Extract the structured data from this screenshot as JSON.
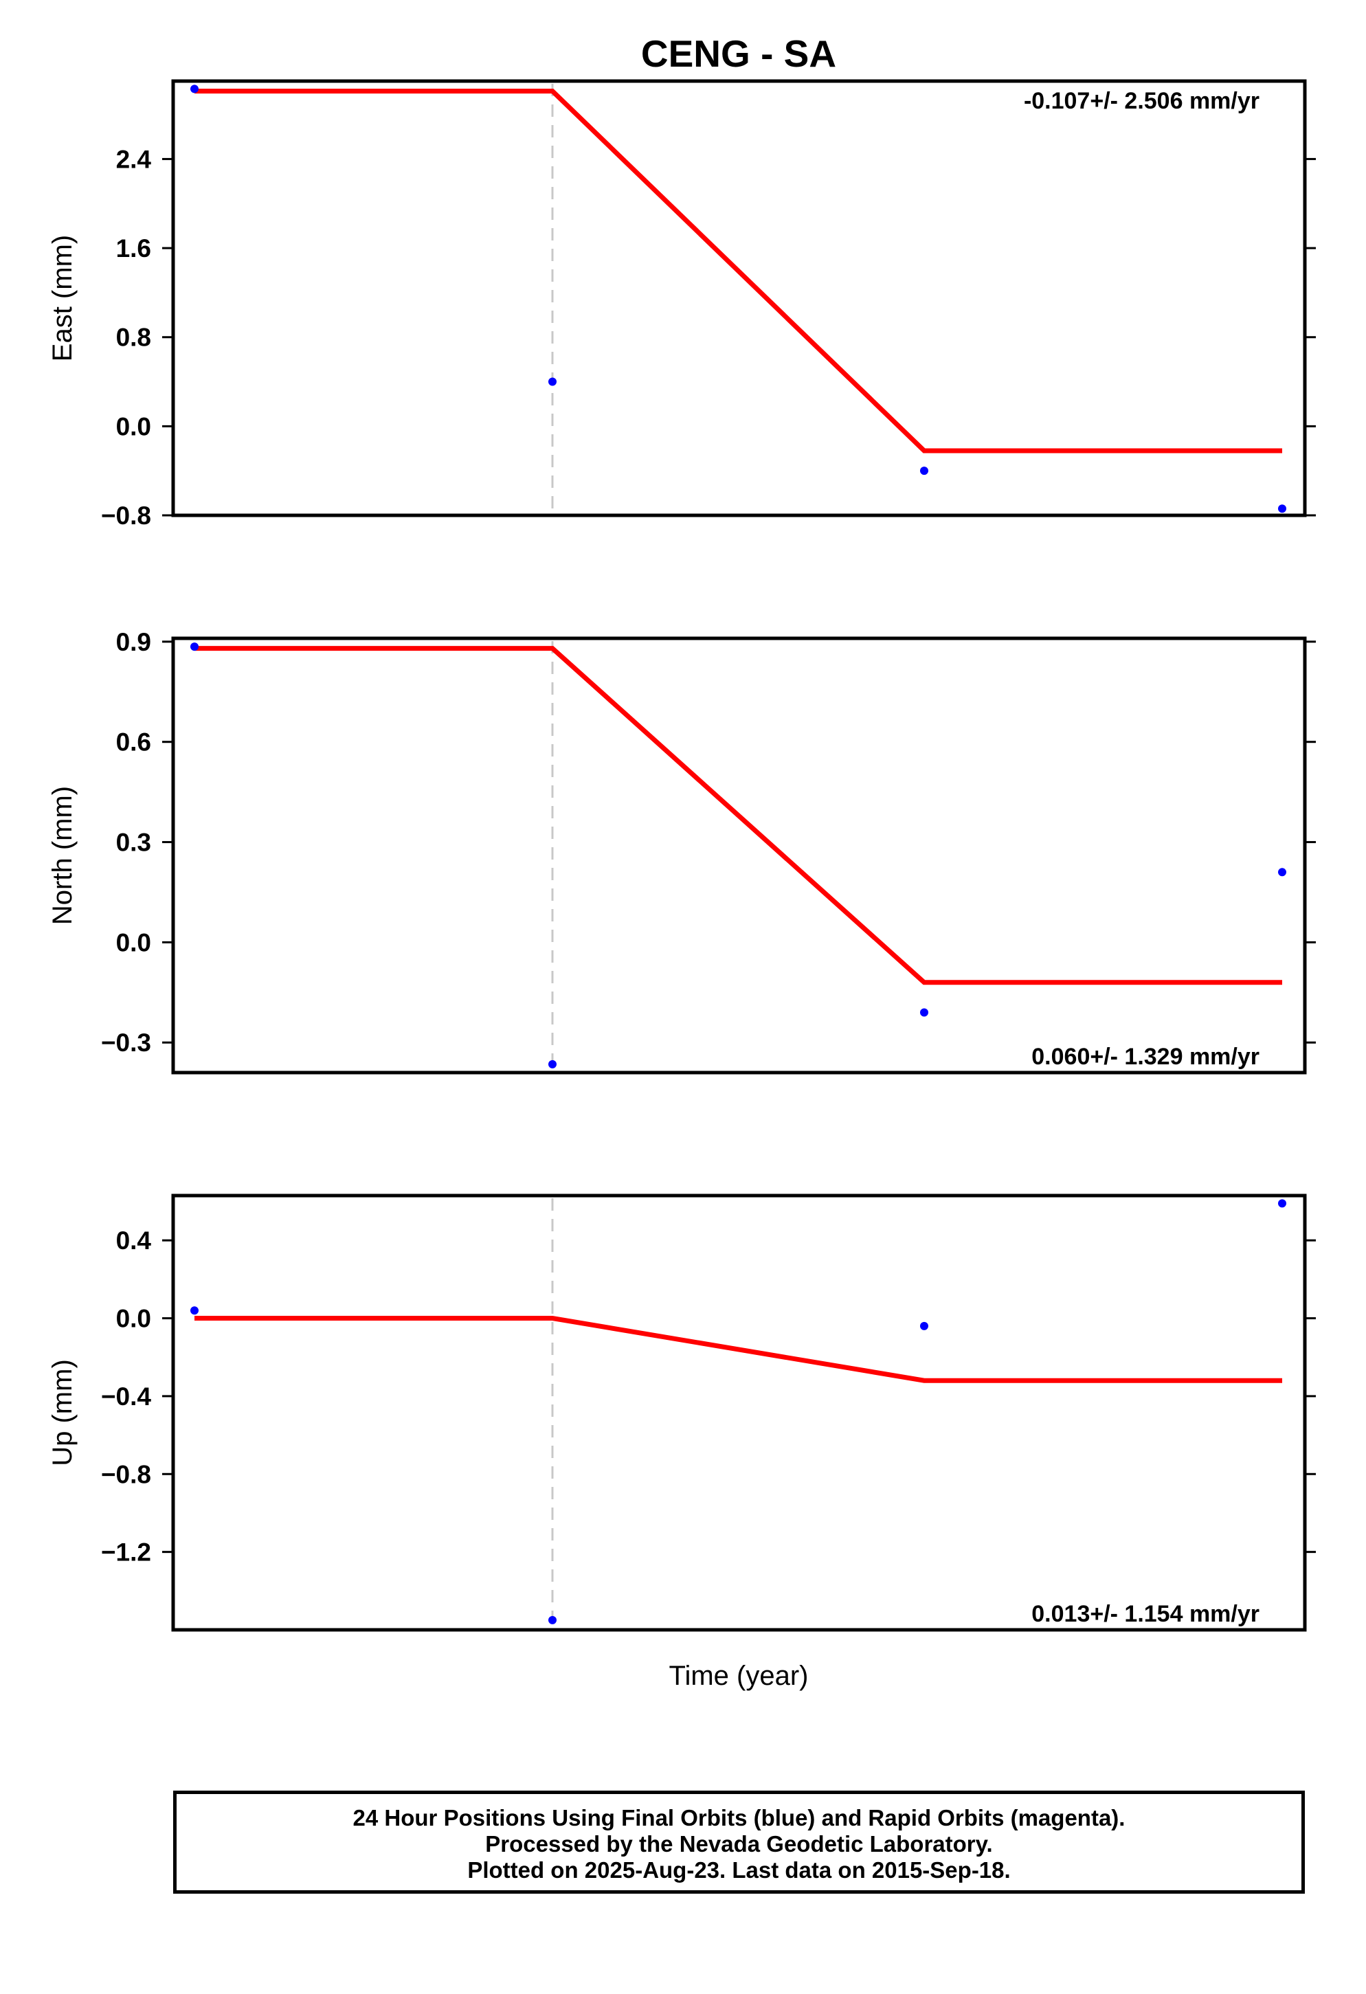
{
  "chart_data": {
    "type": "scatter",
    "title": "CENG - SA",
    "xlabel": "Time (year)",
    "break_index": 1,
    "panels": [
      {
        "id": "east",
        "ylabel": "East (mm)",
        "ylim": [
          -0.8,
          3.1
        ],
        "yticks": [
          2.4,
          1.6,
          0.8,
          0.0,
          -0.8
        ],
        "yticklabels": [
          "2.4",
          "1.6",
          "0.8",
          "0.0",
          "−0.8"
        ],
        "rate_text": "-0.107+/- 2.506 mm/yr",
        "rate_position": "top-right",
        "points": [
          3.03,
          0.4,
          -0.4,
          -0.74
        ],
        "model": [
          3.01,
          3.01,
          -0.22,
          -0.22
        ]
      },
      {
        "id": "north",
        "ylabel": "North (mm)",
        "ylim": [
          -0.39,
          0.91
        ],
        "yticks": [
          0.9,
          0.6,
          0.3,
          0.0,
          -0.3
        ],
        "yticklabels": [
          "0.9",
          "0.6",
          "0.3",
          "0.0",
          "−0.3"
        ],
        "rate_text": "0.060+/- 1.329 mm/yr",
        "rate_position": "bottom-right",
        "points": [
          0.885,
          -0.365,
          -0.21,
          0.21
        ],
        "model": [
          0.88,
          0.88,
          -0.12,
          -0.12
        ]
      },
      {
        "id": "up",
        "ylabel": "Up (mm)",
        "ylim": [
          -1.6,
          0.63
        ],
        "yticks": [
          0.4,
          0.0,
          -0.4,
          -0.8,
          -1.2
        ],
        "yticklabels": [
          "0.4",
          "0.0",
          "−0.4",
          "−0.8",
          "−1.2"
        ],
        "rate_text": "0.013+/- 1.154 mm/yr",
        "rate_position": "bottom-right",
        "points": [
          0.04,
          -1.55,
          -0.04,
          0.59
        ],
        "model": [
          0.0,
          0.0,
          -0.32,
          -0.32
        ]
      }
    ],
    "colors": {
      "points": "#0000ff",
      "model": "#ff0000",
      "break_line": "#c8c8c8"
    },
    "grid": false
  },
  "footer": {
    "line1": "24 Hour Positions Using Final Orbits (blue) and Rapid Orbits (magenta).",
    "line2": "Processed by the Nevada Geodetic Laboratory.",
    "line3": "Plotted on 2025-Aug-23. Last data on 2015-Sep-18."
  }
}
